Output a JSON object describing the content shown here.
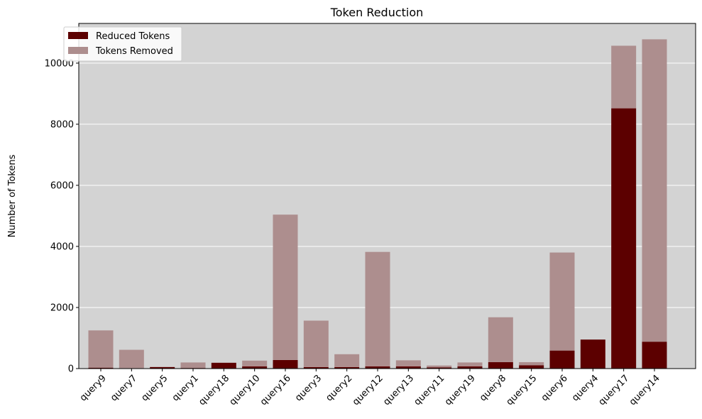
{
  "chart_data": {
    "type": "bar",
    "title": "Token Reduction",
    "xlabel": "",
    "ylabel": "Number of Tokens",
    "ylim": [
      0,
      11300
    ],
    "yticks": [
      0,
      2000,
      4000,
      6000,
      8000,
      10000
    ],
    "grid": "horizontal",
    "legend_position": "top-left",
    "colors": {
      "plot_background": "#d3d3d3",
      "reduced": "#5c0000",
      "removed": "#ad8e8e",
      "grid": "#ffffff"
    },
    "categories": [
      "query9",
      "query7",
      "query5",
      "query1",
      "query18",
      "query10",
      "query16",
      "query3",
      "query2",
      "query12",
      "query13",
      "query11",
      "query19",
      "query8",
      "query15",
      "query6",
      "query4",
      "query17",
      "query14"
    ],
    "series": [
      {
        "name": "Reduced Tokens",
        "values": [
          30,
          15,
          50,
          20,
          190,
          70,
          280,
          50,
          50,
          70,
          70,
          40,
          70,
          210,
          110,
          590,
          950,
          8520,
          880
        ]
      },
      {
        "name": "Tokens Removed",
        "values": [
          1220,
          600,
          0,
          180,
          0,
          190,
          4760,
          1520,
          420,
          3750,
          200,
          60,
          130,
          1470,
          100,
          3210,
          0,
          2050,
          9900
        ]
      }
    ]
  }
}
